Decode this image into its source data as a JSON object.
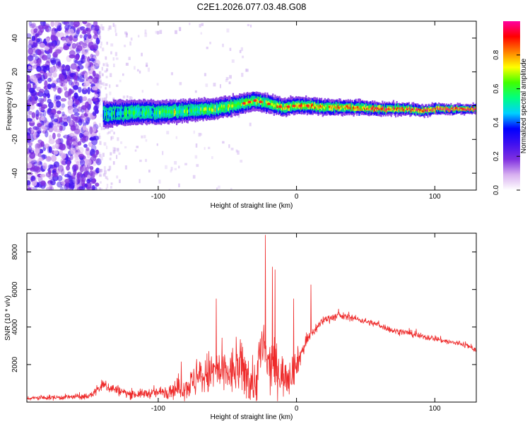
{
  "title": "C2E1.2026.077.03.48.G08",
  "chart_data": [
    {
      "type": "heatmap",
      "title": "C2E1.2026.077.03.48.G08",
      "xlabel": "Height of straight line (km)",
      "ylabel": "Frequency (Hz)",
      "xlim": [
        -195,
        130
      ],
      "ylim": [
        -50,
        50
      ],
      "x_ticks": [
        -100,
        0,
        100
      ],
      "x_tick_labels": [
        "-100",
        "0",
        "100"
      ],
      "y_ticks": [
        -40,
        -20,
        0,
        20,
        40
      ],
      "y_tick_labels": [
        "-40",
        "-20",
        "0",
        "20",
        "40"
      ],
      "colorbar": {
        "label": "Normalized spectral amplitude",
        "range": [
          0.0,
          1.0
        ],
        "ticks": [
          0.0,
          0.2,
          0.4,
          0.6,
          0.8
        ],
        "tick_labels": [
          "0.0",
          "0.2",
          "0.4",
          "0.6",
          "0.8"
        ],
        "colormap": [
          "#ffffff",
          "#d8b0f0",
          "#8030e0",
          "#4010f0",
          "#0000ff",
          "#00d0ff",
          "#00ff80",
          "#40ff00",
          "#ffff00",
          "#ff8000",
          "#ff0000",
          "#ff00a0"
        ]
      },
      "ridge": {
        "x": [
          -140,
          -120,
          -100,
          -80,
          -60,
          -40,
          -30,
          -20,
          -10,
          0,
          10,
          20,
          40,
          60,
          80,
          90,
          100,
          130
        ],
        "freq": [
          -5,
          -4,
          -4,
          -3,
          -2,
          1,
          3,
          1,
          -1,
          0,
          0,
          -1,
          -1,
          -2,
          -2,
          -3,
          -2,
          -2
        ]
      },
      "noise_region": {
        "x": [
          -195,
          -143
        ]
      }
    },
    {
      "type": "line",
      "xlabel": "Height of straight line (km)",
      "ylabel": "SNR (10 * v/v)",
      "xlim": [
        -195,
        130
      ],
      "ylim": [
        0,
        9000
      ],
      "x_ticks": [
        -100,
        0,
        100
      ],
      "x_tick_labels": [
        "-100",
        "0",
        "100"
      ],
      "y_ticks": [
        2000,
        4000,
        6000,
        8000
      ],
      "y_tick_labels": [
        "2000",
        "4000",
        "6000",
        "8000"
      ],
      "color": "#ee2a2a",
      "envelope": {
        "x": [
          -195,
          -150,
          -140,
          -120,
          -100,
          -80,
          -70,
          -60,
          -50,
          -40,
          -30,
          -25,
          -20,
          -15,
          -10,
          -5,
          0,
          5,
          10,
          20,
          30,
          40,
          50,
          60,
          70,
          80,
          90,
          100,
          110,
          120,
          130
        ],
        "mean": [
          200,
          300,
          900,
          400,
          500,
          800,
          1300,
          1600,
          1500,
          1800,
          900,
          3000,
          1800,
          1900,
          1400,
          1500,
          2000,
          2900,
          3600,
          4400,
          4600,
          4500,
          4300,
          4100,
          3800,
          3700,
          3500,
          3400,
          3200,
          3100,
          2800
        ],
        "spread": [
          100,
          150,
          300,
          200,
          250,
          600,
          900,
          1200,
          1100,
          1300,
          1200,
          1500,
          1300,
          1300,
          1000,
          1000,
          700,
          400,
          300,
          200,
          200,
          150,
          150,
          150,
          150,
          150,
          150,
          150,
          150,
          150,
          150
        ]
      },
      "spikes": [
        {
          "x": -22.5,
          "y": 8900
        },
        {
          "x": -17.5,
          "y": 7200
        },
        {
          "x": -15.5,
          "y": 7050
        },
        {
          "x": 10.5,
          "y": 6250
        },
        {
          "x": -58,
          "y": 5500
        },
        {
          "x": -2,
          "y": 5500
        }
      ]
    }
  ]
}
